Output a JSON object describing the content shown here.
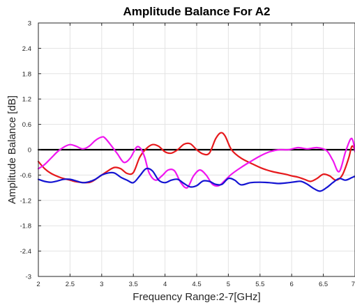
{
  "chart_data": {
    "type": "line",
    "title": "Amplitude Balance For A2",
    "xlabel": "Frequency Range:2-7[GHz]",
    "ylabel": "Amplitude Balance [dB]",
    "xlim": [
      2,
      7
    ],
    "ylim": [
      -3,
      3
    ],
    "xticks": [
      2,
      2.5,
      3,
      3.5,
      4,
      4.5,
      5,
      5.5,
      6,
      6.5,
      7
    ],
    "xtick_labels": [
      "2",
      "2.5",
      "3",
      "3.5",
      "4",
      "4.5",
      "5",
      "5.5",
      "6",
      "6.5",
      "7"
    ],
    "yticks": [
      3,
      2.4,
      1.8,
      1.2,
      0.6,
      0,
      -0.6,
      -1.2,
      -1.8,
      -2.4,
      -3
    ],
    "ytick_labels": [
      "3",
      "2.4",
      "1.8",
      "1.2",
      "0.6",
      "0",
      "-0.6",
      "-1.2",
      "-1.8",
      "-2.4",
      "-3"
    ],
    "grid": true,
    "series": [
      {
        "color": "#000000",
        "x": [
          2,
          7
        ],
        "y": [
          0,
          0
        ]
      },
      {
        "color": "#e6191c",
        "x": [
          2,
          2.1,
          2.2,
          2.35,
          2.5,
          2.6,
          2.75,
          2.85,
          3.0,
          3.1,
          3.2,
          3.3,
          3.4,
          3.5,
          3.6,
          3.7,
          3.8,
          3.9,
          4.0,
          4.1,
          4.2,
          4.3,
          4.4,
          4.5,
          4.6,
          4.7,
          4.8,
          4.88,
          4.95,
          5.05,
          5.2,
          5.4,
          5.55,
          5.7,
          5.9,
          6.0,
          6.1,
          6.2,
          6.3,
          6.4,
          6.5,
          6.6,
          6.7,
          6.8,
          6.9,
          6.95,
          7.0
        ],
        "y": [
          -0.28,
          -0.45,
          -0.56,
          -0.66,
          -0.72,
          -0.76,
          -0.78,
          -0.75,
          -0.6,
          -0.5,
          -0.42,
          -0.45,
          -0.56,
          -0.54,
          -0.18,
          0.02,
          0.12,
          0.08,
          -0.05,
          -0.08,
          0.0,
          0.13,
          0.14,
          0.0,
          -0.1,
          -0.08,
          0.26,
          0.4,
          0.32,
          0.0,
          -0.2,
          -0.35,
          -0.45,
          -0.52,
          -0.58,
          -0.62,
          -0.65,
          -0.7,
          -0.75,
          -0.68,
          -0.58,
          -0.62,
          -0.72,
          -0.6,
          -0.2,
          0.08,
          0.0
        ]
      },
      {
        "color": "#f016f0",
        "x": [
          2,
          2.1,
          2.2,
          2.3,
          2.4,
          2.5,
          2.6,
          2.7,
          2.8,
          2.9,
          3.0,
          3.05,
          3.15,
          3.25,
          3.35,
          3.45,
          3.55,
          3.62,
          3.68,
          3.75,
          3.85,
          3.95,
          4.05,
          4.15,
          4.25,
          4.35,
          4.45,
          4.55,
          4.65,
          4.75,
          4.85,
          4.95,
          5.05,
          5.2,
          5.35,
          5.5,
          5.65,
          5.8,
          5.95,
          6.1,
          6.25,
          6.4,
          6.55,
          6.65,
          6.75,
          6.85,
          6.93,
          6.97,
          7.0
        ],
        "y": [
          -0.45,
          -0.35,
          -0.2,
          -0.05,
          0.06,
          0.12,
          0.08,
          0.02,
          0.08,
          0.22,
          0.3,
          0.28,
          0.1,
          -0.1,
          -0.3,
          -0.2,
          0.06,
          0.02,
          -0.18,
          -0.55,
          -0.72,
          -0.62,
          -0.48,
          -0.5,
          -0.78,
          -0.9,
          -0.62,
          -0.48,
          -0.6,
          -0.82,
          -0.85,
          -0.72,
          -0.58,
          -0.42,
          -0.28,
          -0.15,
          -0.05,
          0.0,
          0.0,
          0.05,
          0.02,
          0.05,
          -0.02,
          -0.25,
          -0.52,
          -0.05,
          0.25,
          0.2,
          -0.05
        ]
      },
      {
        "color": "#1414d2",
        "x": [
          2,
          2.1,
          2.2,
          2.3,
          2.4,
          2.5,
          2.6,
          2.7,
          2.8,
          2.9,
          3.0,
          3.1,
          3.2,
          3.3,
          3.4,
          3.5,
          3.6,
          3.7,
          3.8,
          3.9,
          4.0,
          4.1,
          4.2,
          4.3,
          4.4,
          4.5,
          4.6,
          4.7,
          4.8,
          4.9,
          5.0,
          5.1,
          5.2,
          5.35,
          5.5,
          5.65,
          5.8,
          5.95,
          6.05,
          6.15,
          6.25,
          6.35,
          6.45,
          6.55,
          6.65,
          6.75,
          6.85,
          6.95,
          7.0
        ],
        "y": [
          -0.7,
          -0.75,
          -0.77,
          -0.74,
          -0.7,
          -0.7,
          -0.74,
          -0.78,
          -0.76,
          -0.7,
          -0.6,
          -0.55,
          -0.55,
          -0.65,
          -0.72,
          -0.78,
          -0.62,
          -0.45,
          -0.5,
          -0.72,
          -0.78,
          -0.72,
          -0.7,
          -0.8,
          -0.88,
          -0.85,
          -0.74,
          -0.75,
          -0.82,
          -0.82,
          -0.68,
          -0.72,
          -0.83,
          -0.78,
          -0.77,
          -0.78,
          -0.8,
          -0.78,
          -0.76,
          -0.75,
          -0.82,
          -0.92,
          -0.98,
          -0.9,
          -0.78,
          -0.68,
          -0.72,
          -0.66,
          -0.63
        ]
      }
    ]
  }
}
